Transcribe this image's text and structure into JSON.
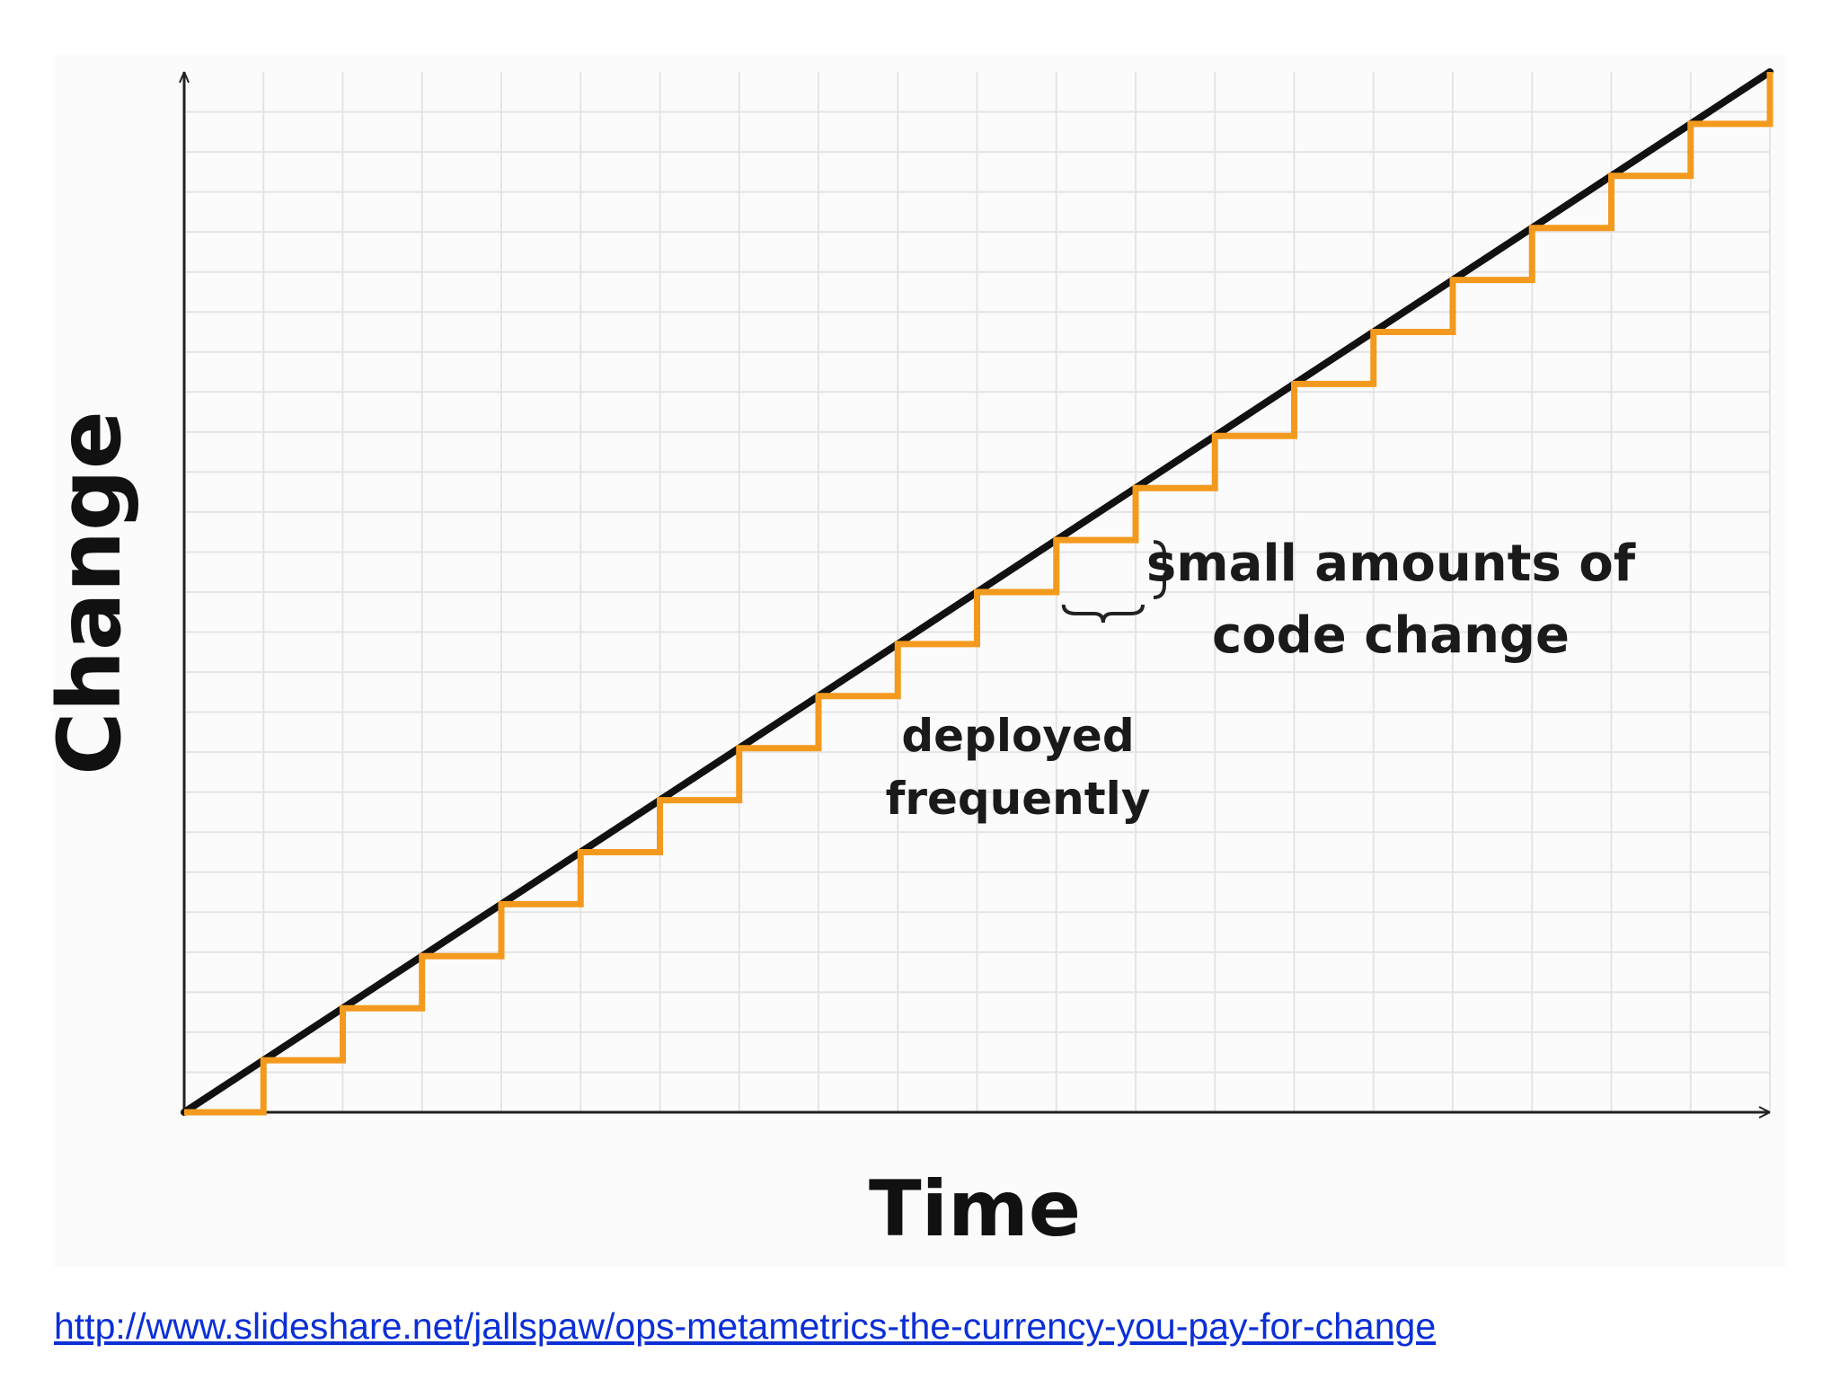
{
  "chart_data": {
    "type": "line",
    "xlabel": "Time",
    "ylabel": "Change",
    "xlim": [
      0,
      20
    ],
    "ylim": [
      0,
      20
    ],
    "grid": true,
    "series": [
      {
        "values_x": [
          0,
          20
        ],
        "values_y": [
          0,
          20
        ],
        "color": "#111111"
      },
      {
        "steps": 20,
        "color": "#f39a1e"
      }
    ],
    "annotations": [
      {
        "lines": [
          "small amounts of",
          "code change"
        ]
      },
      {
        "lines": [
          "deployed",
          "frequently"
        ]
      }
    ]
  },
  "source": {
    "url": "http://www.slideshare.net/jallspaw/ops-metametrics-the-currency-you-pay-for-change"
  }
}
